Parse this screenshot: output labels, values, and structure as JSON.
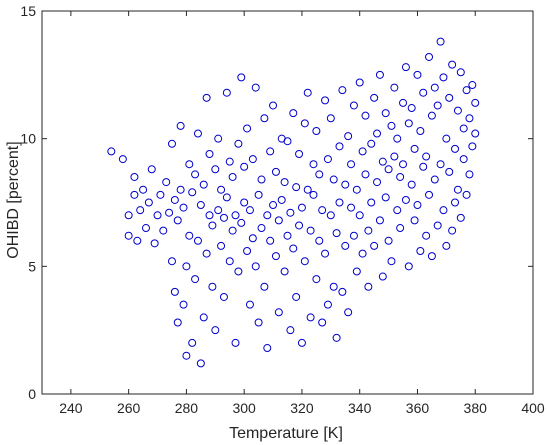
{
  "chart_data": {
    "type": "scatter",
    "title": "",
    "xlabel": "Temperature [K]",
    "ylabel": "OHIBD [percent]",
    "xlim": [
      230,
      400
    ],
    "ylim": [
      0,
      15
    ],
    "xticks": [
      240,
      260,
      280,
      300,
      320,
      340,
      360,
      380,
      400
    ],
    "yticks": [
      0,
      5,
      10,
      15
    ],
    "xtick_labels": [
      "240",
      "260",
      "280",
      "300",
      "320",
      "340",
      "360",
      "380",
      "400"
    ],
    "ytick_labels": [
      "0",
      "5",
      "10",
      "15"
    ],
    "grid": false,
    "legend": "none",
    "marker": "circle-open",
    "series": [
      {
        "color": "#0000cc",
        "points": [
          [
            254,
            9.5
          ],
          [
            258,
            9.2
          ],
          [
            260,
            7.0
          ],
          [
            260,
            6.2
          ],
          [
            262,
            7.8
          ],
          [
            262,
            8.5
          ],
          [
            263,
            6.0
          ],
          [
            264,
            7.2
          ],
          [
            265,
            8.0
          ],
          [
            266,
            6.5
          ],
          [
            267,
            7.5
          ],
          [
            268,
            8.8
          ],
          [
            269,
            5.9
          ],
          [
            270,
            7.0
          ],
          [
            271,
            7.8
          ],
          [
            272,
            6.4
          ],
          [
            273,
            8.3
          ],
          [
            274,
            7.1
          ],
          [
            275,
            9.8
          ],
          [
            275,
            5.2
          ],
          [
            276,
            4.0
          ],
          [
            276,
            7.6
          ],
          [
            277,
            2.8
          ],
          [
            277,
            6.8
          ],
          [
            278,
            10.5
          ],
          [
            278,
            8.0
          ],
          [
            279,
            3.5
          ],
          [
            279,
            7.3
          ],
          [
            280,
            1.5
          ],
          [
            280,
            5.0
          ],
          [
            281,
            9.0
          ],
          [
            281,
            6.2
          ],
          [
            282,
            2.0
          ],
          [
            282,
            7.9
          ],
          [
            283,
            4.5
          ],
          [
            283,
            8.6
          ],
          [
            284,
            6.0
          ],
          [
            284,
            10.2
          ],
          [
            285,
            1.2
          ],
          [
            285,
            7.4
          ],
          [
            286,
            3.0
          ],
          [
            286,
            8.2
          ],
          [
            287,
            11.6
          ],
          [
            287,
            5.5
          ],
          [
            288,
            7.0
          ],
          [
            288,
            9.4
          ],
          [
            289,
            4.2
          ],
          [
            289,
            6.6
          ],
          [
            290,
            8.8
          ],
          [
            290,
            2.5
          ],
          [
            291,
            7.2
          ],
          [
            291,
            10.0
          ],
          [
            292,
            5.8
          ],
          [
            292,
            8.0
          ],
          [
            293,
            6.9
          ],
          [
            293,
            3.8
          ],
          [
            294,
            11.8
          ],
          [
            294,
            7.7
          ],
          [
            295,
            9.1
          ],
          [
            295,
            5.2
          ],
          [
            296,
            6.4
          ],
          [
            296,
            8.5
          ],
          [
            297,
            7.0
          ],
          [
            297,
            2.0
          ],
          [
            298,
            9.8
          ],
          [
            298,
            4.8
          ],
          [
            299,
            12.4
          ],
          [
            299,
            6.7
          ],
          [
            300,
            7.5
          ],
          [
            300,
            8.9
          ],
          [
            301,
            5.6
          ],
          [
            301,
            10.4
          ],
          [
            302,
            3.5
          ],
          [
            302,
            7.2
          ],
          [
            303,
            6.1
          ],
          [
            303,
            9.2
          ],
          [
            304,
            12.0
          ],
          [
            304,
            5.0
          ],
          [
            305,
            7.8
          ],
          [
            305,
            2.8
          ],
          [
            306,
            6.5
          ],
          [
            306,
            8.4
          ],
          [
            307,
            4.2
          ],
          [
            307,
            10.8
          ],
          [
            308,
            7.0
          ],
          [
            308,
            1.8
          ],
          [
            309,
            9.5
          ],
          [
            309,
            6.0
          ],
          [
            310,
            11.3
          ],
          [
            310,
            7.4
          ],
          [
            311,
            5.4
          ],
          [
            311,
            8.7
          ],
          [
            312,
            3.2
          ],
          [
            312,
            6.8
          ],
          [
            313,
            10.0
          ],
          [
            313,
            7.6
          ],
          [
            314,
            4.8
          ],
          [
            314,
            8.3
          ],
          [
            315,
            6.2
          ],
          [
            315,
            9.9
          ],
          [
            316,
            2.5
          ],
          [
            316,
            7.1
          ],
          [
            317,
            11.0
          ],
          [
            317,
            5.7
          ],
          [
            318,
            8.1
          ],
          [
            318,
            3.8
          ],
          [
            319,
            6.6
          ],
          [
            319,
            9.4
          ],
          [
            320,
            7.3
          ],
          [
            320,
            2.0
          ],
          [
            321,
            10.6
          ],
          [
            321,
            5.2
          ],
          [
            322,
            8.0
          ],
          [
            322,
            11.8
          ],
          [
            323,
            6.4
          ],
          [
            323,
            3.0
          ],
          [
            324,
            9.0
          ],
          [
            324,
            7.8
          ],
          [
            325,
            4.5
          ],
          [
            325,
            10.3
          ],
          [
            326,
            6.0
          ],
          [
            326,
            8.6
          ],
          [
            327,
            2.8
          ],
          [
            327,
            7.2
          ],
          [
            328,
            11.5
          ],
          [
            328,
            5.5
          ],
          [
            329,
            9.2
          ],
          [
            329,
            3.5
          ],
          [
            330,
            7.0
          ],
          [
            330,
            10.8
          ],
          [
            331,
            4.2
          ],
          [
            331,
            8.4
          ],
          [
            332,
            6.3
          ],
          [
            332,
            2.2
          ],
          [
            333,
            9.7
          ],
          [
            333,
            7.5
          ],
          [
            334,
            11.9
          ],
          [
            334,
            4.0
          ],
          [
            335,
            8.2
          ],
          [
            335,
            5.8
          ],
          [
            336,
            10.1
          ],
          [
            336,
            3.2
          ],
          [
            337,
            7.3
          ],
          [
            337,
            9.0
          ],
          [
            338,
            6.2
          ],
          [
            338,
            11.3
          ],
          [
            339,
            8.0
          ],
          [
            339,
            4.8
          ],
          [
            340,
            12.2
          ],
          [
            340,
            7.0
          ],
          [
            341,
            9.5
          ],
          [
            341,
            5.5
          ],
          [
            342,
            8.6
          ],
          [
            342,
            10.9
          ],
          [
            343,
            6.4
          ],
          [
            343,
            4.2
          ],
          [
            344,
            9.8
          ],
          [
            344,
            7.5
          ],
          [
            345,
            11.6
          ],
          [
            345,
            5.8
          ],
          [
            346,
            8.3
          ],
          [
            346,
            10.2
          ],
          [
            347,
            6.8
          ],
          [
            347,
            12.5
          ],
          [
            348,
            9.1
          ],
          [
            348,
            4.6
          ],
          [
            349,
            7.7
          ],
          [
            349,
            11.0
          ],
          [
            350,
            8.8
          ],
          [
            350,
            6.0
          ],
          [
            351,
            10.5
          ],
          [
            351,
            5.2
          ],
          [
            352,
            9.3
          ],
          [
            352,
            12.0
          ],
          [
            353,
            7.2
          ],
          [
            353,
            10.0
          ],
          [
            354,
            8.5
          ],
          [
            354,
            6.5
          ],
          [
            355,
            11.4
          ],
          [
            355,
            9.0
          ],
          [
            356,
            7.6
          ],
          [
            356,
            12.8
          ],
          [
            357,
            5.0
          ],
          [
            357,
            10.6
          ],
          [
            358,
            8.2
          ],
          [
            358,
            11.2
          ],
          [
            359,
            6.8
          ],
          [
            359,
            9.6
          ],
          [
            360,
            12.5
          ],
          [
            360,
            7.4
          ],
          [
            361,
            10.3
          ],
          [
            361,
            5.6
          ],
          [
            362,
            8.9
          ],
          [
            362,
            11.8
          ],
          [
            363,
            6.2
          ],
          [
            363,
            9.3
          ],
          [
            364,
            13.2
          ],
          [
            364,
            7.8
          ],
          [
            365,
            10.9
          ],
          [
            365,
            5.4
          ],
          [
            366,
            8.4
          ],
          [
            366,
            12.0
          ],
          [
            367,
            6.6
          ],
          [
            367,
            11.3
          ],
          [
            368,
            13.8
          ],
          [
            368,
            9.0
          ],
          [
            369,
            7.2
          ],
          [
            369,
            12.4
          ],
          [
            370,
            10.0
          ],
          [
            370,
            5.8
          ],
          [
            371,
            8.7
          ],
          [
            371,
            11.6
          ],
          [
            372,
            6.4
          ],
          [
            372,
            12.9
          ],
          [
            373,
            9.6
          ],
          [
            373,
            7.5
          ],
          [
            374,
            11.1
          ],
          [
            374,
            8.0
          ],
          [
            375,
            12.6
          ],
          [
            375,
            6.9
          ],
          [
            376,
            10.4
          ],
          [
            376,
            9.2
          ],
          [
            377,
            11.9
          ],
          [
            377,
            7.8
          ],
          [
            378,
            10.8
          ],
          [
            378,
            8.6
          ],
          [
            379,
            12.1
          ],
          [
            379,
            9.7
          ],
          [
            380,
            11.4
          ],
          [
            380,
            10.2
          ]
        ]
      }
    ]
  }
}
